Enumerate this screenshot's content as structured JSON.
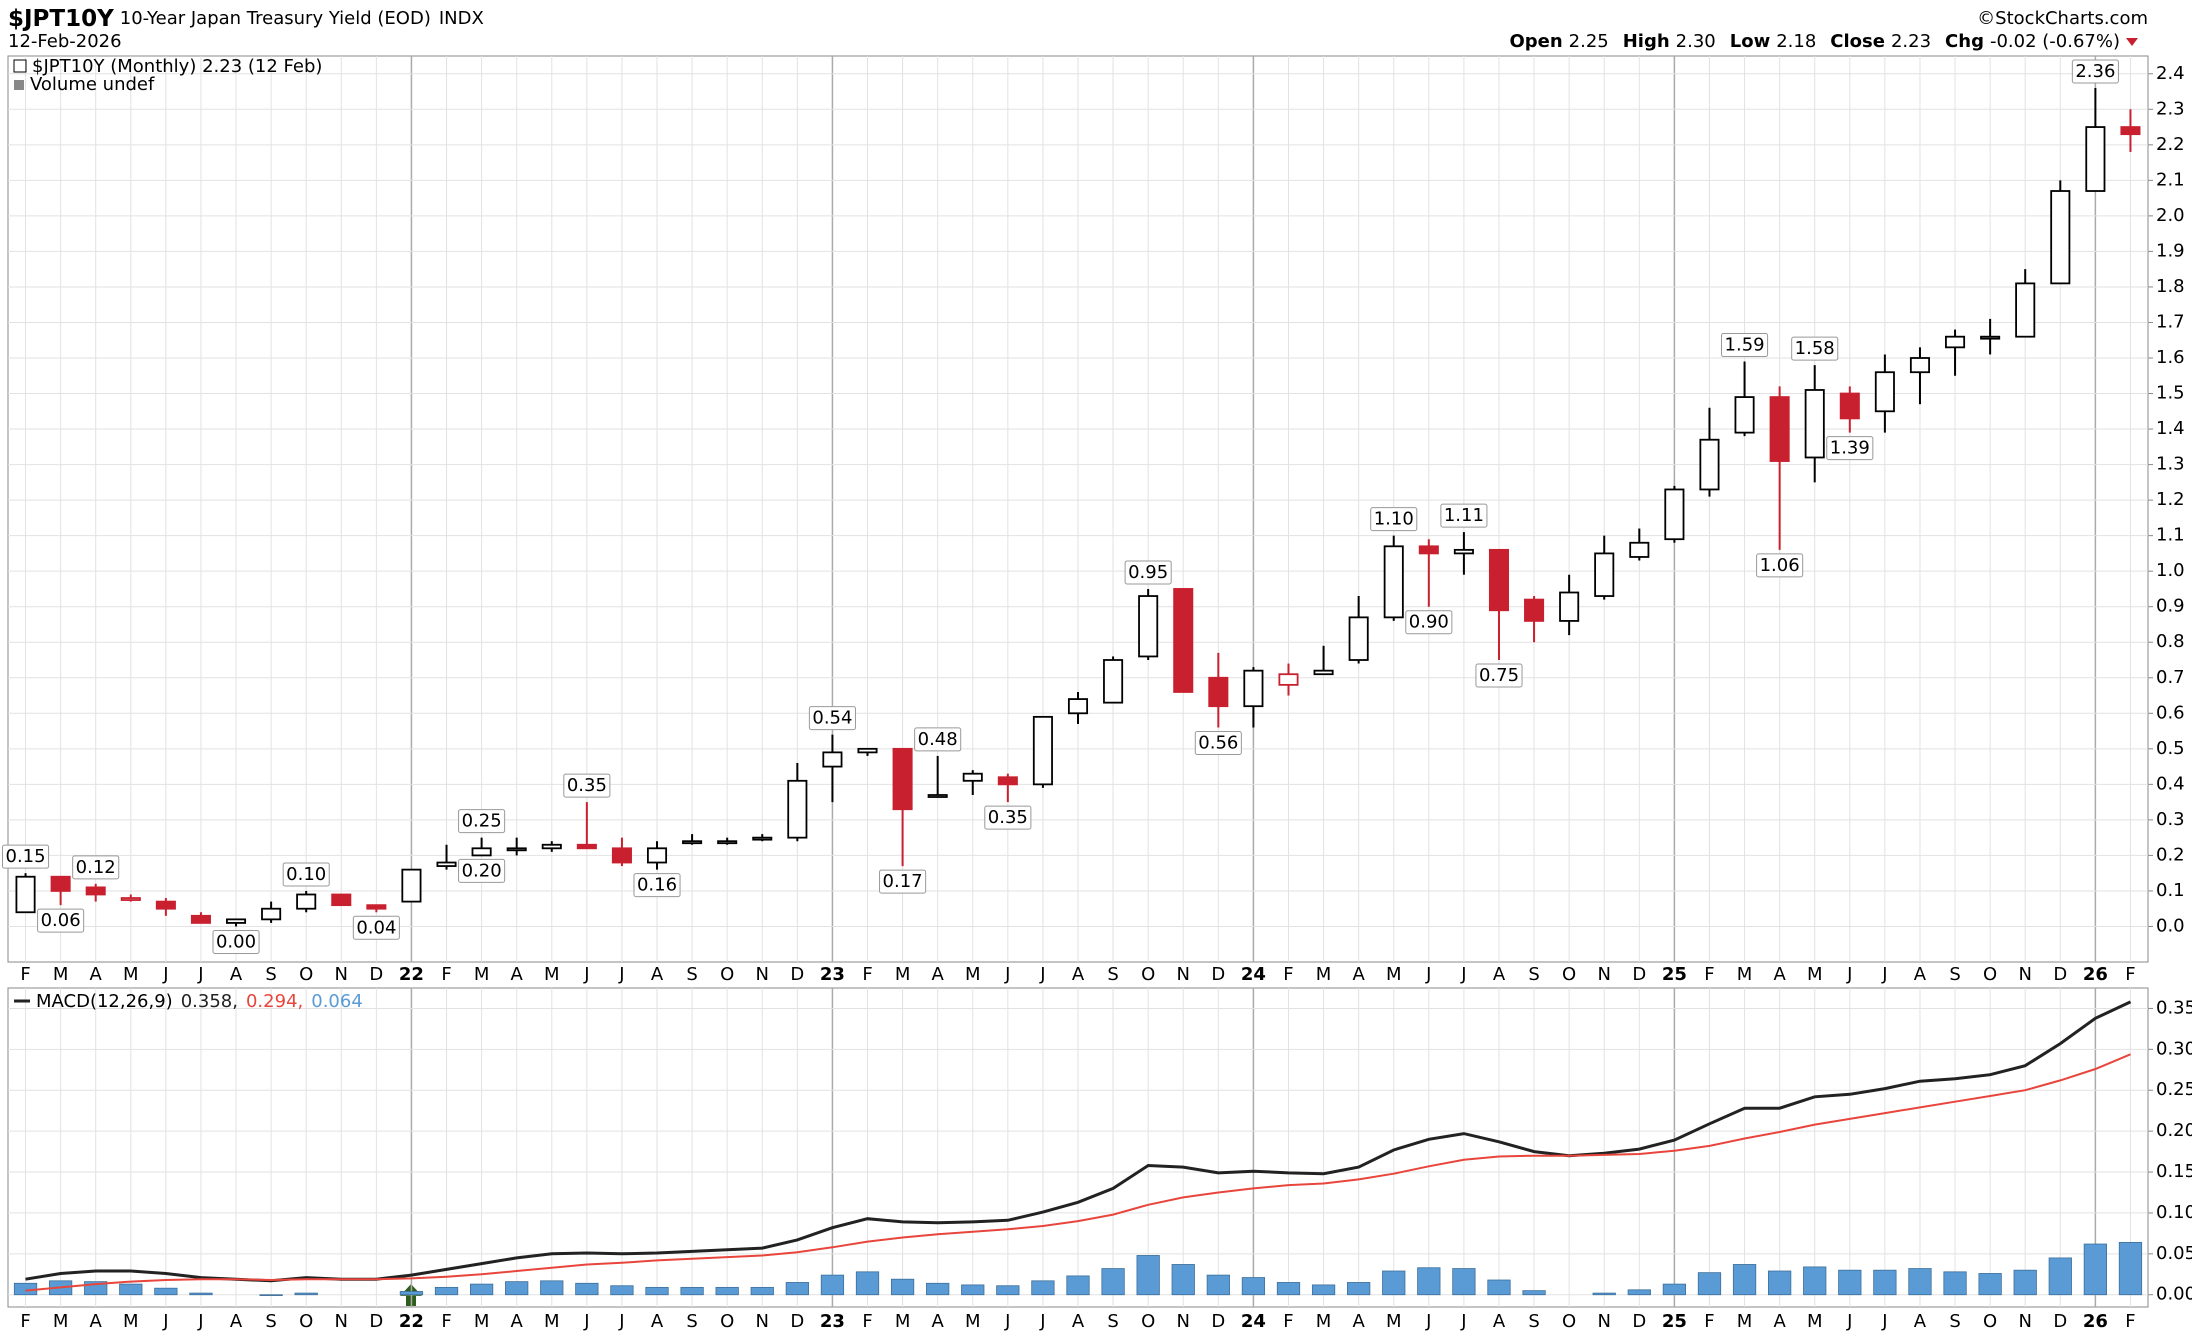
{
  "header": {
    "symbol": "$JPT10Y",
    "title": "10-Year Japan Treasury Yield (EOD)",
    "exchange": "INDX",
    "date": "12-Feb-2026",
    "brand": "©StockCharts.com",
    "quote": [
      {
        "label": "Open",
        "value": "2.25"
      },
      {
        "label": "High",
        "value": "2.30"
      },
      {
        "label": "Low",
        "value": "2.18"
      },
      {
        "label": "Close",
        "value": "2.23"
      },
      {
        "label": "Chg",
        "value": "-0.02 (-0.67%)"
      }
    ]
  },
  "chart_data": [
    {
      "type": "candlestick",
      "legend": "$JPT10Y (Monthly) 2.23 (12 Feb)",
      "volume_note": "Volume undef",
      "categories": [
        "F",
        "M",
        "A",
        "M",
        "J",
        "J",
        "A",
        "S",
        "O",
        "N",
        "D",
        "22",
        "F",
        "M",
        "A",
        "M",
        "J",
        "J",
        "A",
        "S",
        "O",
        "N",
        "D",
        "23",
        "F",
        "M",
        "A",
        "M",
        "J",
        "J",
        "A",
        "S",
        "O",
        "N",
        "D",
        "24",
        "F",
        "M",
        "A",
        "M",
        "J",
        "J",
        "A",
        "S",
        "O",
        "N",
        "D",
        "25",
        "F",
        "M",
        "A",
        "M",
        "J",
        "J",
        "A",
        "S",
        "O",
        "N",
        "D",
        "26",
        "F"
      ],
      "open": [
        0.04,
        0.14,
        0.11,
        0.08,
        0.07,
        0.03,
        0.01,
        0.02,
        0.05,
        0.09,
        0.06,
        0.07,
        0.17,
        0.2,
        0.22,
        0.22,
        0.23,
        0.22,
        0.18,
        0.24,
        0.24,
        0.25,
        0.25,
        0.45,
        0.49,
        0.5,
        0.37,
        0.41,
        0.42,
        0.4,
        0.6,
        0.63,
        0.76,
        0.95,
        0.7,
        0.62,
        0.68,
        0.71,
        0.75,
        0.87,
        1.07,
        1.05,
        1.06,
        0.92,
        0.86,
        0.93,
        1.04,
        1.09,
        1.23,
        1.39,
        1.49,
        1.32,
        1.5,
        1.45,
        1.56,
        1.63,
        1.66,
        1.66,
        1.81,
        2.07,
        2.25
      ],
      "high": [
        0.15,
        0.14,
        0.12,
        0.09,
        0.08,
        0.04,
        0.02,
        0.07,
        0.1,
        0.09,
        0.06,
        0.16,
        0.23,
        0.25,
        0.25,
        0.24,
        0.35,
        0.25,
        0.24,
        0.26,
        0.25,
        0.26,
        0.46,
        0.54,
        0.5,
        0.5,
        0.48,
        0.44,
        0.43,
        0.59,
        0.66,
        0.76,
        0.95,
        0.95,
        0.77,
        0.73,
        0.74,
        0.79,
        0.93,
        1.1,
        1.09,
        1.11,
        1.06,
        0.93,
        0.99,
        1.1,
        1.12,
        1.24,
        1.46,
        1.59,
        1.52,
        1.58,
        1.52,
        1.61,
        1.63,
        1.68,
        1.71,
        1.85,
        2.1,
        2.36,
        2.3
      ],
      "low": [
        0.04,
        0.06,
        0.07,
        0.07,
        0.03,
        0.01,
        0.0,
        0.01,
        0.04,
        0.06,
        0.04,
        0.07,
        0.16,
        0.2,
        0.2,
        0.21,
        0.22,
        0.17,
        0.16,
        0.23,
        0.23,
        0.24,
        0.24,
        0.35,
        0.48,
        0.17,
        0.37,
        0.37,
        0.35,
        0.39,
        0.57,
        0.63,
        0.75,
        0.66,
        0.56,
        0.56,
        0.65,
        0.71,
        0.74,
        0.86,
        0.9,
        0.99,
        0.75,
        0.8,
        0.82,
        0.92,
        1.03,
        1.08,
        1.21,
        1.38,
        1.06,
        1.25,
        1.39,
        1.39,
        1.47,
        1.55,
        1.61,
        1.66,
        1.81,
        2.07,
        2.18
      ],
      "close": [
        0.14,
        0.1,
        0.09,
        0.08,
        0.05,
        0.01,
        0.02,
        0.05,
        0.09,
        0.06,
        0.05,
        0.16,
        0.18,
        0.22,
        0.22,
        0.23,
        0.22,
        0.18,
        0.22,
        0.24,
        0.24,
        0.25,
        0.41,
        0.49,
        0.5,
        0.33,
        0.37,
        0.43,
        0.4,
        0.59,
        0.64,
        0.75,
        0.93,
        0.66,
        0.62,
        0.72,
        0.71,
        0.72,
        0.87,
        1.07,
        1.05,
        1.06,
        0.89,
        0.86,
        0.94,
        1.05,
        1.08,
        1.23,
        1.37,
        1.49,
        1.31,
        1.51,
        1.43,
        1.56,
        1.6,
        1.66,
        1.66,
        1.81,
        2.07,
        2.25,
        2.23
      ],
      "high_labels": [
        "0.15",
        null,
        "0.12",
        null,
        null,
        null,
        null,
        null,
        "0.10",
        null,
        null,
        null,
        null,
        "0.25",
        null,
        null,
        "0.35",
        null,
        null,
        null,
        null,
        null,
        null,
        "0.54",
        null,
        null,
        "0.48",
        null,
        null,
        null,
        null,
        null,
        "0.95",
        null,
        null,
        null,
        null,
        null,
        null,
        "1.10",
        null,
        "1.11",
        null,
        null,
        null,
        null,
        null,
        null,
        null,
        "1.59",
        null,
        "1.58",
        null,
        null,
        null,
        null,
        null,
        null,
        null,
        "2.36",
        null
      ],
      "low_labels": [
        null,
        "0.06",
        null,
        null,
        null,
        null,
        "0.00",
        null,
        null,
        null,
        "0.04",
        null,
        null,
        "0.20",
        null,
        null,
        null,
        null,
        "0.16",
        null,
        null,
        null,
        null,
        null,
        null,
        "0.17",
        null,
        null,
        "0.35",
        null,
        null,
        null,
        null,
        null,
        "0.56",
        null,
        null,
        null,
        null,
        null,
        "0.90",
        null,
        "0.75",
        null,
        null,
        null,
        null,
        null,
        null,
        null,
        "1.06",
        null,
        "1.39",
        null,
        null,
        null,
        null,
        null,
        null,
        null,
        null
      ],
      "colors": {
        "up": "#000000",
        "down": "#c8202f"
      },
      "ylim": [
        -0.1,
        2.45
      ],
      "yticks": [
        {
          "value": 0,
          "label": "0.0"
        },
        0.1,
        0.2,
        0.3,
        0.4,
        0.5,
        0.6,
        0.7,
        0.8,
        0.9,
        {
          "value": 1,
          "label": "1.0"
        },
        1.1,
        1.2,
        1.3,
        1.4,
        1.5,
        1.6,
        1.7,
        1.8,
        1.9,
        {
          "value": 2,
          "label": "2.0"
        },
        2.1,
        2.2,
        2.3,
        2.4
      ],
      "grid": true
    },
    {
      "type": "macd",
      "legend": "MACD(12,26,9)",
      "legend_values": [
        "0.358,",
        "0.294,",
        "0.064"
      ],
      "categories": [
        "F",
        "M",
        "A",
        "M",
        "J",
        "J",
        "A",
        "S",
        "O",
        "N",
        "D",
        "22",
        "F",
        "M",
        "A",
        "M",
        "J",
        "J",
        "A",
        "S",
        "O",
        "N",
        "D",
        "23",
        "F",
        "M",
        "A",
        "M",
        "J",
        "J",
        "A",
        "S",
        "O",
        "N",
        "D",
        "24",
        "F",
        "M",
        "A",
        "M",
        "J",
        "J",
        "A",
        "S",
        "O",
        "N",
        "D",
        "25",
        "F",
        "M",
        "A",
        "M",
        "J",
        "J",
        "A",
        "S",
        "O",
        "N",
        "D",
        "26",
        "F"
      ],
      "series": [
        {
          "kind": "line",
          "color": "#222222",
          "values": [
            0.019,
            0.026,
            0.029,
            0.029,
            0.026,
            0.021,
            0.019,
            0.017,
            0.021,
            0.019,
            0.019,
            0.024,
            0.031,
            0.038,
            0.045,
            0.05,
            0.051,
            0.05,
            0.051,
            0.053,
            0.055,
            0.057,
            0.067,
            0.082,
            0.093,
            0.089,
            0.088,
            0.089,
            0.091,
            0.101,
            0.113,
            0.13,
            0.158,
            0.156,
            0.149,
            0.151,
            0.149,
            0.148,
            0.156,
            0.177,
            0.19,
            0.197,
            0.187,
            0.175,
            0.17,
            0.173,
            0.178,
            0.189,
            0.209,
            0.228,
            0.228,
            0.242,
            0.245,
            0.252,
            0.261,
            0.264,
            0.269,
            0.28,
            0.307,
            0.338,
            0.358
          ]
        },
        {
          "kind": "line",
          "color": "#e8453c",
          "values": [
            0.005,
            0.009,
            0.013,
            0.016,
            0.018,
            0.019,
            0.019,
            0.018,
            0.019,
            0.019,
            0.019,
            0.02,
            0.022,
            0.025,
            0.029,
            0.033,
            0.037,
            0.039,
            0.042,
            0.044,
            0.046,
            0.048,
            0.052,
            0.058,
            0.065,
            0.07,
            0.074,
            0.077,
            0.08,
            0.084,
            0.09,
            0.098,
            0.11,
            0.119,
            0.125,
            0.13,
            0.134,
            0.136,
            0.141,
            0.148,
            0.157,
            0.165,
            0.169,
            0.17,
            0.17,
            0.171,
            0.172,
            0.176,
            0.182,
            0.191,
            0.199,
            0.208,
            0.215,
            0.222,
            0.229,
            0.236,
            0.243,
            0.25,
            0.262,
            0.276,
            0.294
          ]
        },
        {
          "kind": "bar",
          "color": "#5b9bd5",
          "values": [
            0.014,
            0.017,
            0.016,
            0.013,
            0.008,
            0.002,
            0.0,
            -0.001,
            0.002,
            0.0,
            0.0,
            0.004,
            0.009,
            0.013,
            0.016,
            0.017,
            0.014,
            0.011,
            0.009,
            0.009,
            0.009,
            0.009,
            0.015,
            0.024,
            0.028,
            0.019,
            0.014,
            0.012,
            0.011,
            0.017,
            0.023,
            0.032,
            0.048,
            0.037,
            0.024,
            0.021,
            0.015,
            0.012,
            0.015,
            0.029,
            0.033,
            0.032,
            0.018,
            0.005,
            0.0,
            0.002,
            0.006,
            0.013,
            0.027,
            0.037,
            0.029,
            0.034,
            0.03,
            0.03,
            0.032,
            0.028,
            0.026,
            0.03,
            0.045,
            0.062,
            0.064
          ]
        }
      ],
      "ylim": [
        -0.015,
        0.375
      ],
      "yticks": [
        {
          "value": 0,
          "label": "0.00"
        },
        {
          "value": 0.05,
          "label": "0.05"
        },
        {
          "value": 0.1,
          "label": "0.10"
        },
        {
          "value": 0.15,
          "label": "0.15"
        },
        {
          "value": 0.2,
          "label": "0.20"
        },
        {
          "value": 0.25,
          "label": "0.25"
        },
        {
          "value": 0.3,
          "label": "0.30"
        },
        {
          "value": 0.35,
          "label": "0.35"
        }
      ],
      "grid": true
    }
  ]
}
